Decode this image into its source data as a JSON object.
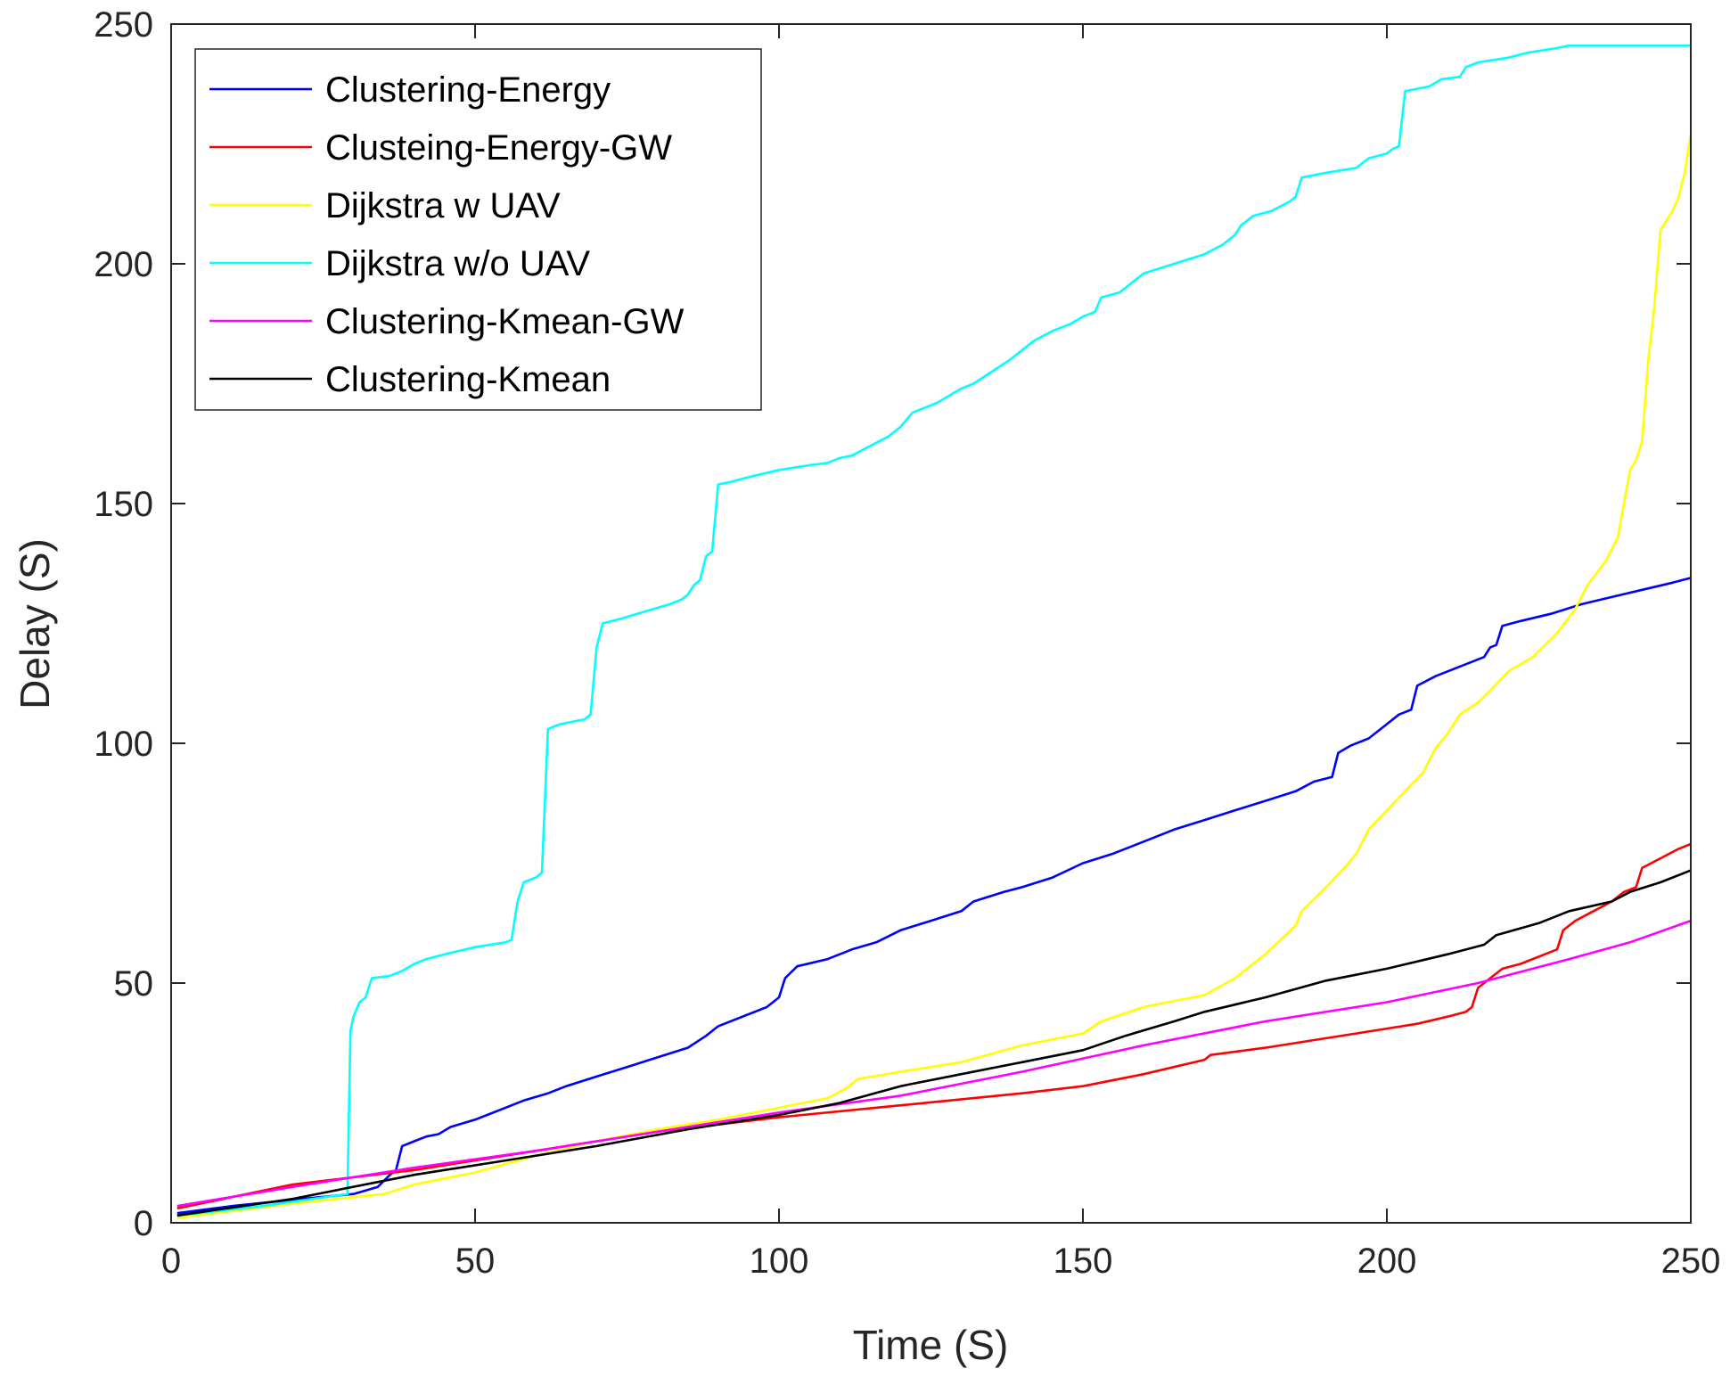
{
  "chart_data": {
    "type": "line",
    "title": "",
    "xlabel": "Time (S)",
    "ylabel": "Delay (S)",
    "xlim": [
      0,
      250
    ],
    "ylim": [
      0,
      250
    ],
    "xticks": [
      0,
      50,
      100,
      150,
      200,
      250
    ],
    "yticks": [
      0,
      50,
      100,
      150,
      200,
      250
    ],
    "xtick_labels": [
      "0",
      "50",
      "100",
      "150",
      "200",
      "250"
    ],
    "ytick_labels": [
      "0",
      "50",
      "100",
      "150",
      "200",
      "250"
    ],
    "grid": false,
    "legend_position": "top-left",
    "series": [
      {
        "name": "Clustering-Energy",
        "color": "#0000ff",
        "points": [
          [
            1,
            2
          ],
          [
            10,
            3.5
          ],
          [
            20,
            4.8
          ],
          [
            30,
            6
          ],
          [
            34,
            7.5
          ],
          [
            36,
            10
          ],
          [
            37,
            11
          ],
          [
            38,
            16
          ],
          [
            40,
            17
          ],
          [
            42,
            18
          ],
          [
            44,
            18.5
          ],
          [
            46,
            20
          ],
          [
            50,
            21.5
          ],
          [
            52,
            22.5
          ],
          [
            55,
            24
          ],
          [
            58,
            25.5
          ],
          [
            62,
            27
          ],
          [
            65,
            28.5
          ],
          [
            70,
            30.5
          ],
          [
            75,
            32.5
          ],
          [
            80,
            34.5
          ],
          [
            85,
            36.5
          ],
          [
            88,
            39
          ],
          [
            90,
            41
          ],
          [
            95,
            43.5
          ],
          [
            98,
            45
          ],
          [
            100,
            47
          ],
          [
            101,
            51
          ],
          [
            103,
            53.5
          ],
          [
            108,
            55
          ],
          [
            112,
            57
          ],
          [
            116,
            58.5
          ],
          [
            120,
            61
          ],
          [
            125,
            63
          ],
          [
            130,
            65
          ],
          [
            132,
            67
          ],
          [
            137,
            69
          ],
          [
            140,
            70
          ],
          [
            145,
            72
          ],
          [
            150,
            75
          ],
          [
            155,
            77
          ],
          [
            160,
            79.5
          ],
          [
            165,
            82
          ],
          [
            170,
            84
          ],
          [
            175,
            86
          ],
          [
            180,
            88
          ],
          [
            185,
            90
          ],
          [
            188,
            92
          ],
          [
            191,
            93
          ],
          [
            192,
            98
          ],
          [
            194,
            99.5
          ],
          [
            197,
            101
          ],
          [
            200,
            104
          ],
          [
            202,
            106
          ],
          [
            204,
            107
          ],
          [
            205,
            112
          ],
          [
            208,
            114
          ],
          [
            212,
            116
          ],
          [
            216,
            118
          ],
          [
            217,
            120
          ],
          [
            218,
            120.5
          ],
          [
            219,
            124.5
          ],
          [
            222,
            125.5
          ],
          [
            227,
            127
          ],
          [
            232,
            129
          ],
          [
            237,
            130.5
          ],
          [
            242,
            132
          ],
          [
            247,
            133.5
          ],
          [
            250,
            134.5
          ]
        ]
      },
      {
        "name": "Clusteing-Energy-GW",
        "color": "#ff0000",
        "points": [
          [
            1,
            3
          ],
          [
            20,
            8
          ],
          [
            40,
            11
          ],
          [
            60,
            15
          ],
          [
            80,
            19
          ],
          [
            100,
            22
          ],
          [
            120,
            24.5
          ],
          [
            140,
            27
          ],
          [
            150,
            28.5
          ],
          [
            160,
            31
          ],
          [
            170,
            34
          ],
          [
            171,
            35
          ],
          [
            180,
            36.5
          ],
          [
            190,
            38.5
          ],
          [
            200,
            40.5
          ],
          [
            205,
            41.5
          ],
          [
            210,
            43
          ],
          [
            213,
            44
          ],
          [
            214,
            45
          ],
          [
            215,
            49
          ],
          [
            217,
            51
          ],
          [
            219,
            53
          ],
          [
            222,
            54
          ],
          [
            226,
            56
          ],
          [
            228,
            57
          ],
          [
            229,
            61
          ],
          [
            231,
            63
          ],
          [
            234,
            65
          ],
          [
            237,
            67
          ],
          [
            239,
            69
          ],
          [
            241,
            70
          ],
          [
            242,
            74
          ],
          [
            245,
            76
          ],
          [
            248,
            78
          ],
          [
            250,
            79
          ]
        ]
      },
      {
        "name": "Dijkstra w UAV",
        "color": "#ffff00",
        "points": [
          [
            1,
            1
          ],
          [
            20,
            4
          ],
          [
            35,
            6
          ],
          [
            40,
            8
          ],
          [
            50,
            10.5
          ],
          [
            60,
            14
          ],
          [
            70,
            17
          ],
          [
            80,
            19.5
          ],
          [
            90,
            21.5
          ],
          [
            100,
            24
          ],
          [
            108,
            26
          ],
          [
            111,
            28
          ],
          [
            113,
            30
          ],
          [
            120,
            31.5
          ],
          [
            130,
            33.5
          ],
          [
            140,
            37
          ],
          [
            150,
            39.5
          ],
          [
            153,
            42
          ],
          [
            160,
            45
          ],
          [
            170,
            47.5
          ],
          [
            175,
            51
          ],
          [
            180,
            56
          ],
          [
            185,
            62
          ],
          [
            186,
            65
          ],
          [
            190,
            70
          ],
          [
            193,
            74
          ],
          [
            195,
            77
          ],
          [
            197,
            82
          ],
          [
            200,
            86
          ],
          [
            203,
            90
          ],
          [
            206,
            94
          ],
          [
            208,
            99
          ],
          [
            210,
            102
          ],
          [
            212,
            106
          ],
          [
            215,
            108.5
          ],
          [
            217,
            111
          ],
          [
            220,
            115
          ],
          [
            224,
            118
          ],
          [
            228,
            123
          ],
          [
            231,
            128
          ],
          [
            233,
            133
          ],
          [
            236,
            138
          ],
          [
            238,
            143
          ],
          [
            240,
            157
          ],
          [
            241,
            159
          ],
          [
            242,
            163
          ],
          [
            243,
            180
          ],
          [
            244,
            191
          ],
          [
            245,
            207
          ],
          [
            247,
            211
          ],
          [
            248,
            214
          ],
          [
            249,
            219
          ],
          [
            250,
            227
          ]
        ]
      },
      {
        "name": "Dijkstra w/o UAV",
        "color": "#00ffff",
        "points": [
          [
            1,
            1.5
          ],
          [
            15,
            3.5
          ],
          [
            29,
            6
          ],
          [
            29.5,
            40
          ],
          [
            30,
            43
          ],
          [
            31,
            46
          ],
          [
            32,
            47
          ],
          [
            33,
            51
          ],
          [
            36,
            51.5
          ],
          [
            38,
            52.5
          ],
          [
            40,
            54
          ],
          [
            42,
            55
          ],
          [
            45,
            56
          ],
          [
            50,
            57.5
          ],
          [
            55,
            58.5
          ],
          [
            56,
            59
          ],
          [
            57,
            67
          ],
          [
            58,
            71
          ],
          [
            60,
            72
          ],
          [
            61,
            73
          ],
          [
            62,
            103
          ],
          [
            64,
            104
          ],
          [
            68,
            105
          ],
          [
            69,
            106
          ],
          [
            70,
            120
          ],
          [
            71,
            125
          ],
          [
            74,
            126
          ],
          [
            78,
            127.5
          ],
          [
            82,
            129
          ],
          [
            84,
            130
          ],
          [
            85,
            131
          ],
          [
            86,
            133
          ],
          [
            87,
            134
          ],
          [
            88,
            139
          ],
          [
            89,
            140
          ],
          [
            90,
            154
          ],
          [
            92,
            154.5
          ],
          [
            95,
            155.5
          ],
          [
            100,
            157
          ],
          [
            105,
            158
          ],
          [
            108,
            158.5
          ],
          [
            110,
            159.5
          ],
          [
            112,
            160
          ],
          [
            115,
            162
          ],
          [
            118,
            164
          ],
          [
            120,
            166
          ],
          [
            122,
            169
          ],
          [
            124,
            170
          ],
          [
            126,
            171
          ],
          [
            128,
            172.5
          ],
          [
            130,
            174
          ],
          [
            132,
            175
          ],
          [
            135,
            177.5
          ],
          [
            138,
            180
          ],
          [
            140,
            182
          ],
          [
            142,
            184
          ],
          [
            145,
            186
          ],
          [
            148,
            187.5
          ],
          [
            150,
            189
          ],
          [
            152,
            190
          ],
          [
            153,
            193
          ],
          [
            156,
            194
          ],
          [
            158,
            196
          ],
          [
            160,
            198
          ],
          [
            165,
            200
          ],
          [
            170,
            202
          ],
          [
            173,
            204
          ],
          [
            175,
            206
          ],
          [
            176,
            208
          ],
          [
            178,
            210
          ],
          [
            181,
            211
          ],
          [
            184,
            213
          ],
          [
            185,
            214
          ],
          [
            186,
            218
          ],
          [
            190,
            219
          ],
          [
            195,
            220
          ],
          [
            197,
            222
          ],
          [
            200,
            223
          ],
          [
            201,
            224
          ],
          [
            202,
            224.5
          ],
          [
            203,
            236
          ],
          [
            205,
            236.5
          ],
          [
            207,
            237
          ],
          [
            209,
            238.5
          ],
          [
            212,
            239
          ],
          [
            213,
            241
          ],
          [
            215,
            242
          ],
          [
            220,
            243
          ],
          [
            223,
            244
          ],
          [
            228,
            245
          ],
          [
            230,
            245.5
          ],
          [
            250,
            245.5
          ]
        ]
      },
      {
        "name": "Clustering-Kmean-GW",
        "color": "#ff00ff",
        "points": [
          [
            1,
            3.5
          ],
          [
            20,
            7.5
          ],
          [
            40,
            11.5
          ],
          [
            60,
            15
          ],
          [
            80,
            19
          ],
          [
            100,
            23
          ],
          [
            120,
            26.5
          ],
          [
            140,
            31.5
          ],
          [
            160,
            37
          ],
          [
            180,
            42
          ],
          [
            200,
            46
          ],
          [
            215,
            50
          ],
          [
            230,
            55
          ],
          [
            240,
            58.5
          ],
          [
            250,
            63
          ]
        ]
      },
      {
        "name": "Clustering-Kmean",
        "color": "#000000",
        "points": [
          [
            1,
            1.5
          ],
          [
            20,
            5
          ],
          [
            40,
            10
          ],
          [
            55,
            13
          ],
          [
            70,
            16
          ],
          [
            85,
            19.5
          ],
          [
            100,
            22.5
          ],
          [
            110,
            25
          ],
          [
            120,
            28.5
          ],
          [
            130,
            31
          ],
          [
            140,
            33.5
          ],
          [
            150,
            36
          ],
          [
            157,
            39
          ],
          [
            165,
            42
          ],
          [
            170,
            44
          ],
          [
            180,
            47
          ],
          [
            190,
            50.5
          ],
          [
            200,
            53
          ],
          [
            210,
            56
          ],
          [
            216,
            58
          ],
          [
            218,
            60
          ],
          [
            225,
            62.5
          ],
          [
            230,
            65
          ],
          [
            237,
            67
          ],
          [
            240,
            69
          ],
          [
            245,
            71
          ],
          [
            250,
            73.5
          ]
        ]
      }
    ]
  }
}
